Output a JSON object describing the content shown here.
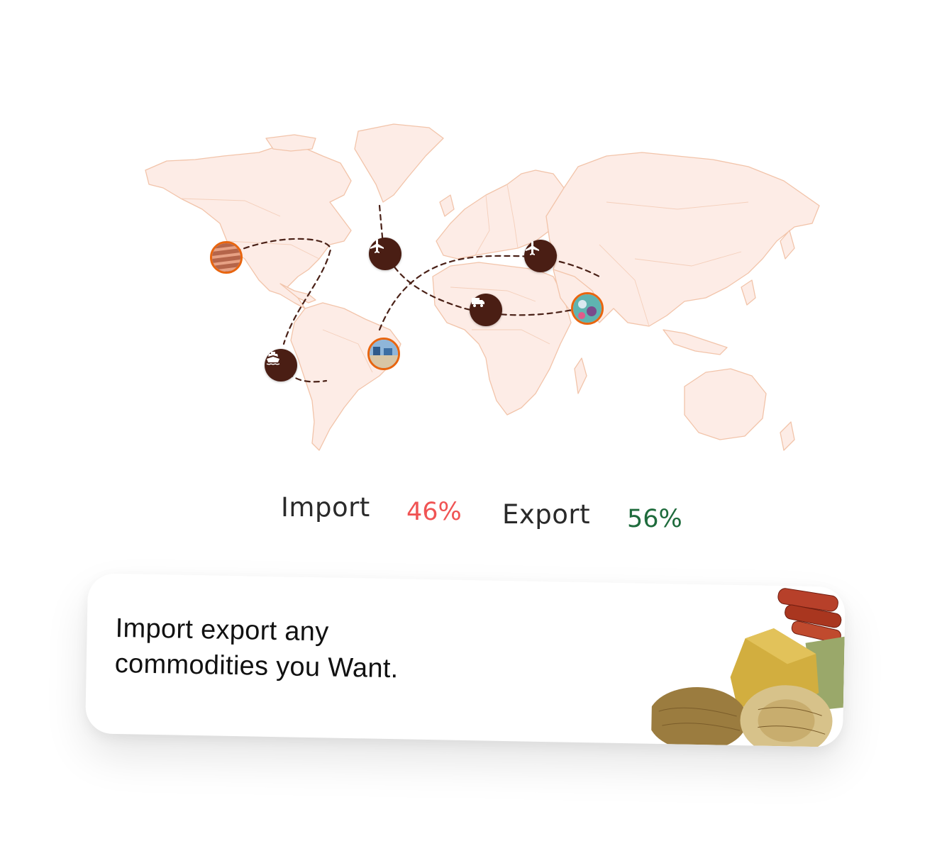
{
  "map": {
    "transport_icons": [
      "airplane-icon",
      "airplane-icon",
      "truck-icon",
      "ship-icon"
    ],
    "photo_markers": [
      "copper-pipes",
      "port-containers",
      "market-spices",
      "warehouse-boxes"
    ]
  },
  "stats": {
    "import_label": "Import",
    "import_value": "46%",
    "export_label": "Export",
    "export_value": "56%",
    "import_color": "#f05454",
    "export_color": "#1e6b3c"
  },
  "card": {
    "line1": "Import export any",
    "line2": "commodities you Want."
  },
  "colors": {
    "map_fill": "#fdece6",
    "map_stroke": "#f2c4aa",
    "marker_bg": "#4a1e14",
    "photo_ring": "#e8650f",
    "route": "#4a2117"
  }
}
